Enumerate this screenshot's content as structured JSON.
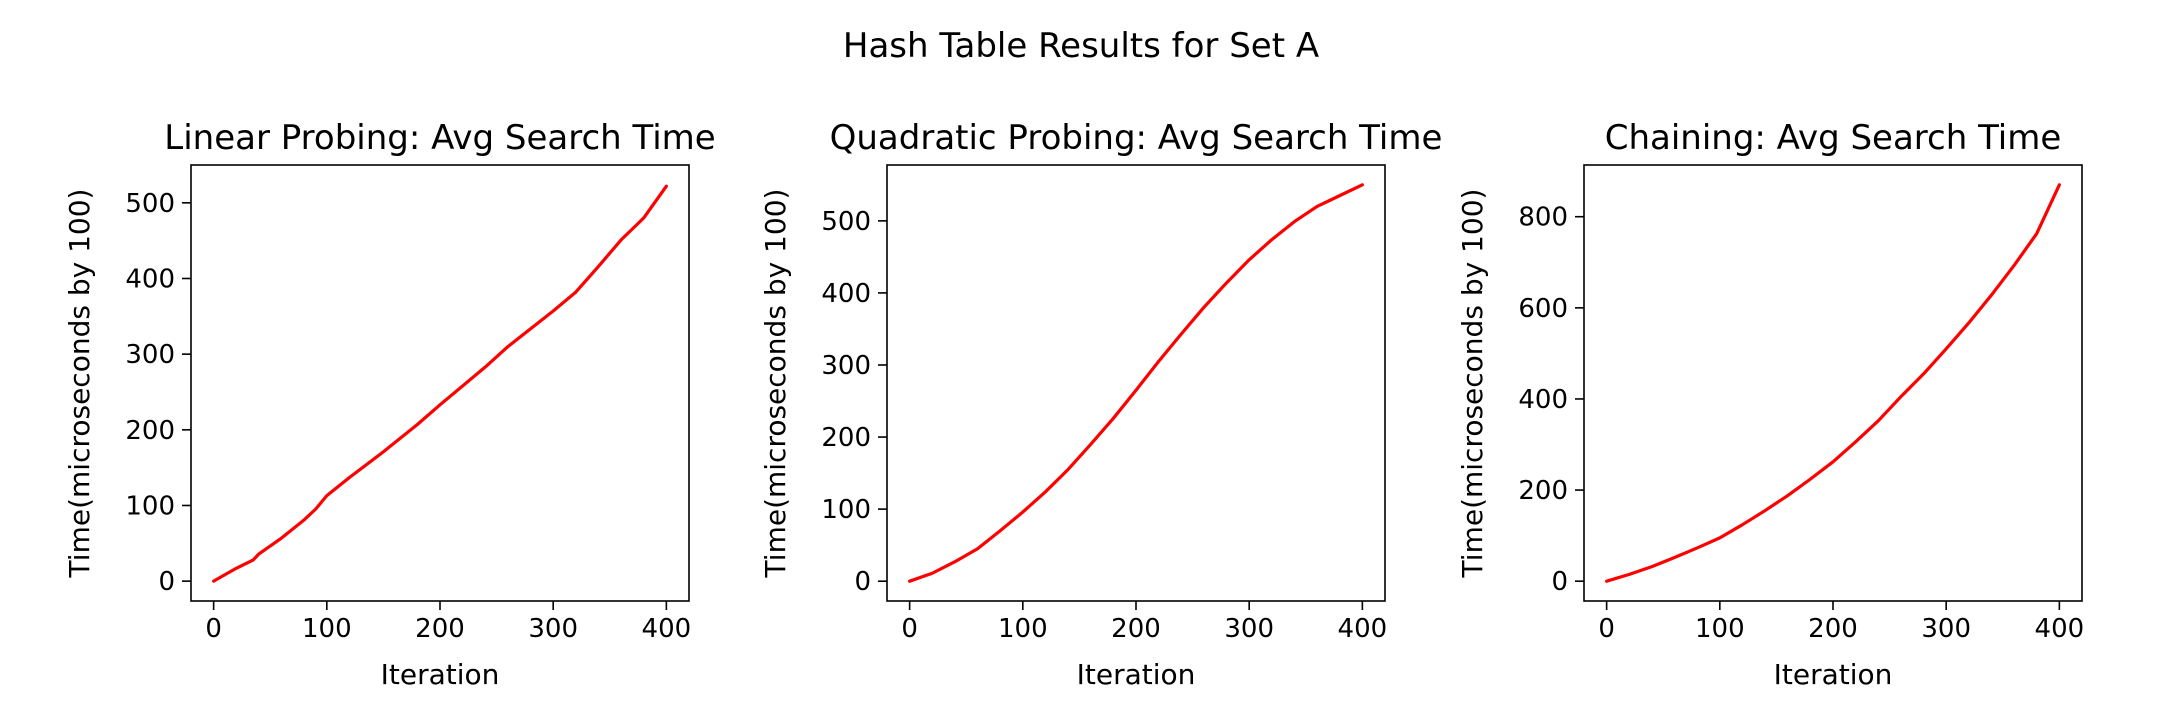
{
  "figure": {
    "suptitle": "Hash Table Results for Set A"
  },
  "colors": {
    "line": "#ff0000",
    "axes": "#000000",
    "background": "#ffffff"
  },
  "chart_data": [
    {
      "type": "line",
      "title": "Linear Probing: Avg Search Time",
      "xlabel": "Iteration",
      "ylabel": "Time(microseconds by 100)",
      "xlim": [
        -20,
        420
      ],
      "ylim": [
        -26.25,
        550
      ],
      "xticks": [
        0,
        100,
        200,
        300,
        400
      ],
      "yticks": [
        0,
        100,
        200,
        300,
        400,
        500
      ],
      "grid": false,
      "series": [
        {
          "color": "#ff0000",
          "x": [
            0,
            20,
            35,
            40,
            60,
            80,
            90,
            100,
            120,
            150,
            180,
            200,
            240,
            260,
            300,
            320,
            340,
            360,
            380,
            400
          ],
          "y": [
            0,
            17,
            28,
            36,
            57,
            81,
            95,
            113,
            137,
            171,
            207,
            233,
            283,
            310,
            357,
            382,
            416,
            451,
            480,
            522
          ]
        }
      ]
    },
    {
      "type": "line",
      "title": "Quadratic Probing: Avg Search Time",
      "xlabel": "Iteration",
      "ylabel": "Time(microseconds by 100)",
      "xlim": [
        -20,
        420
      ],
      "ylim": [
        -27.5,
        577.5
      ],
      "xticks": [
        0,
        100,
        200,
        300,
        400
      ],
      "yticks": [
        0,
        100,
        200,
        300,
        400,
        500
      ],
      "grid": false,
      "series": [
        {
          "color": "#ff0000",
          "x": [
            0,
            20,
            40,
            60,
            80,
            100,
            120,
            140,
            160,
            180,
            200,
            220,
            240,
            260,
            280,
            300,
            320,
            340,
            360,
            380,
            400
          ],
          "y": [
            0,
            11,
            27,
            45,
            70,
            96,
            124,
            155,
            190,
            226,
            265,
            305,
            343,
            380,
            414,
            446,
            474,
            499,
            520,
            535,
            550
          ]
        }
      ]
    },
    {
      "type": "line",
      "title": "Chaining: Avg Search Time",
      "xlabel": "Iteration",
      "ylabel": "Time(microseconds by 100)",
      "xlim": [
        -20,
        420
      ],
      "ylim": [
        -43.5,
        913.5
      ],
      "xticks": [
        0,
        100,
        200,
        300,
        400
      ],
      "yticks": [
        0,
        200,
        400,
        600,
        800
      ],
      "grid": false,
      "series": [
        {
          "color": "#ff0000",
          "x": [
            0,
            20,
            40,
            60,
            80,
            100,
            120,
            140,
            160,
            180,
            200,
            220,
            240,
            260,
            280,
            300,
            320,
            340,
            360,
            380,
            400
          ],
          "y": [
            0,
            15,
            32,
            52,
            73,
            95,
            124,
            155,
            188,
            224,
            262,
            306,
            352,
            405,
            455,
            510,
            567,
            628,
            693,
            763,
            870
          ]
        }
      ]
    }
  ]
}
